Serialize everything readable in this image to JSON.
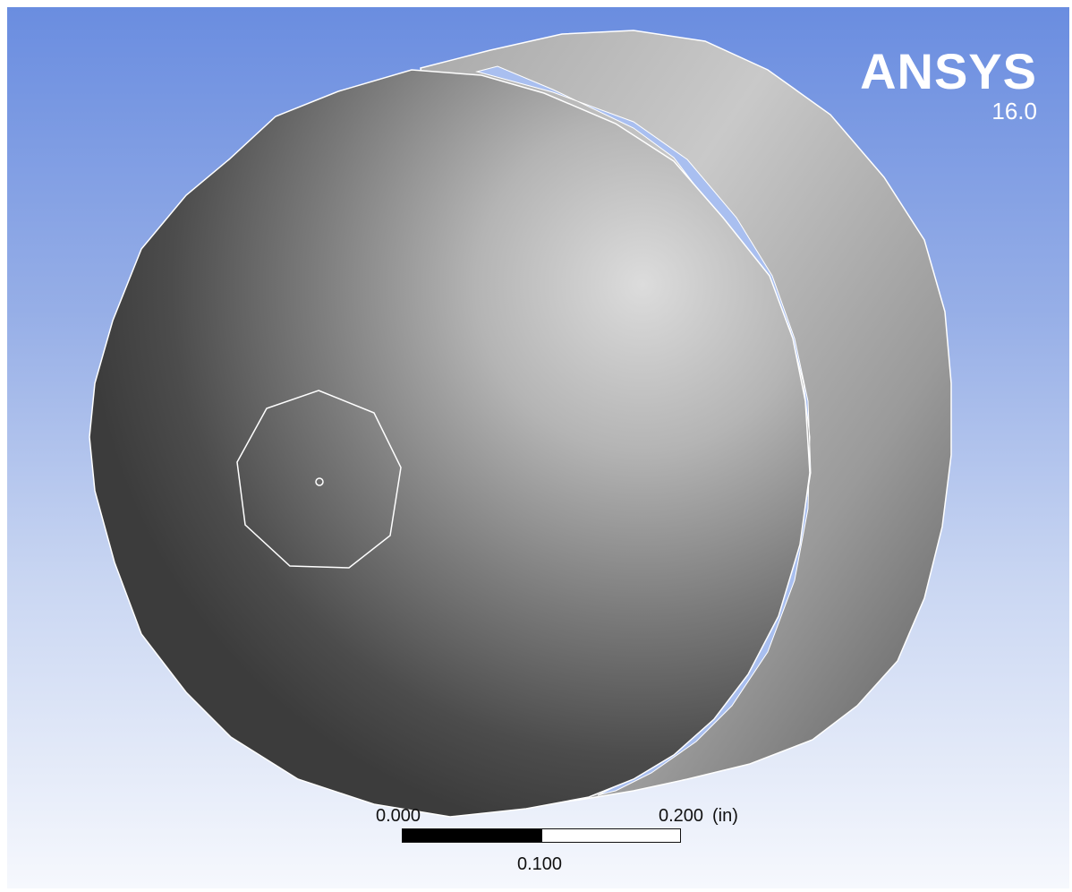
{
  "logo": {
    "name": "ANSYS",
    "version": "16.0"
  },
  "scale": {
    "start_label": "0.000",
    "end_label": "0.200",
    "unit_label": "(in)",
    "mid_label": "0.100"
  },
  "colors": {
    "background_top": "#6a8de0",
    "background_bottom": "#f6f8fd",
    "model_edge": "#ffffff",
    "model_dark": "#3e3e3e",
    "model_light": "#d9d9d9"
  }
}
